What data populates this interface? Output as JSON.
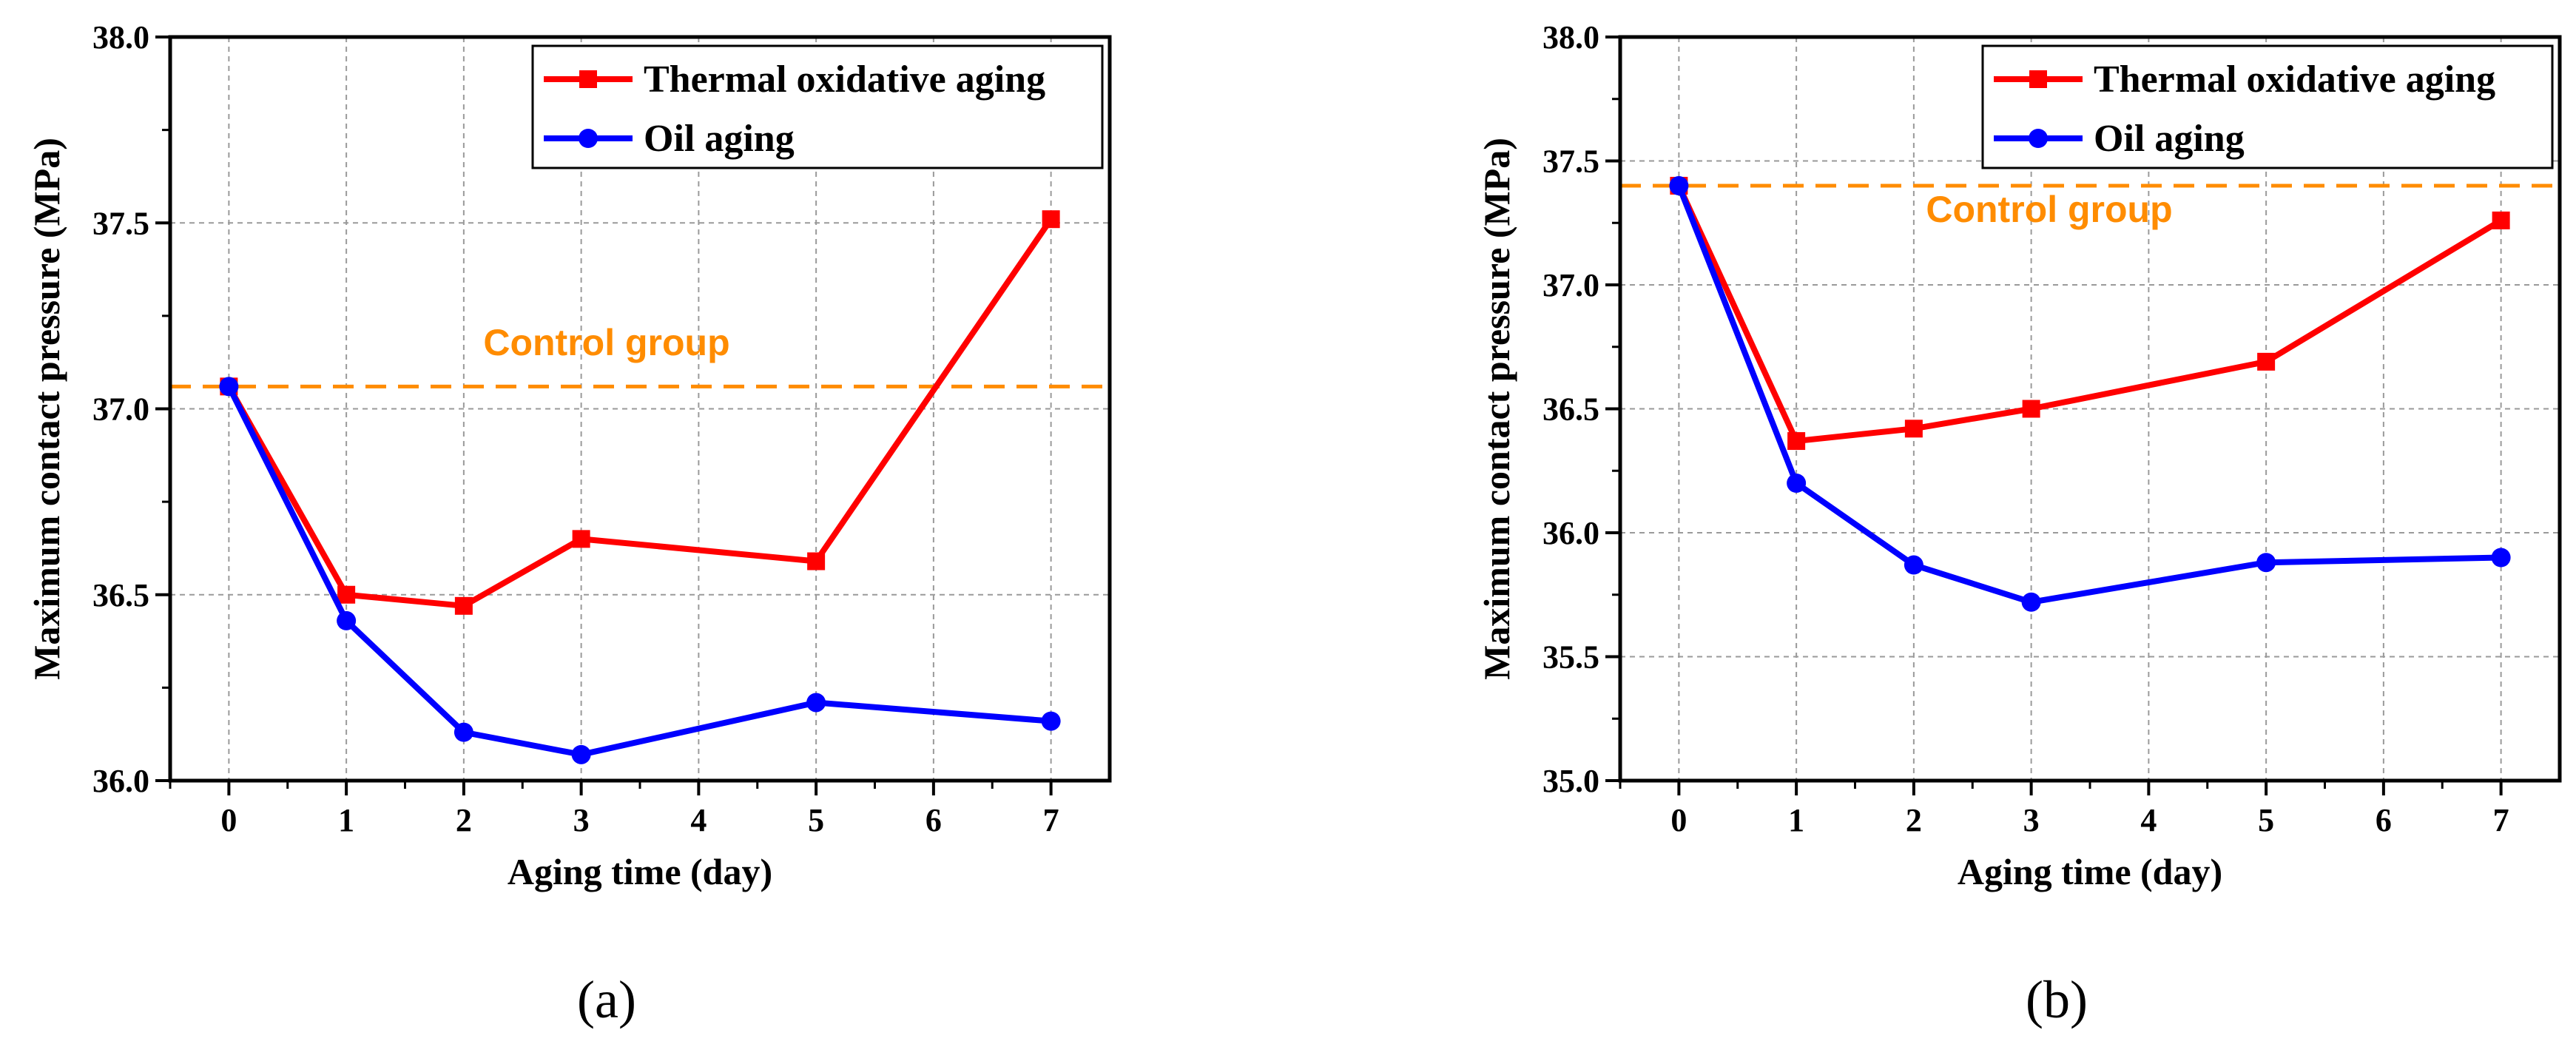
{
  "chart_data": [
    {
      "type": "line",
      "panel_label": "(a)",
      "x": [
        0,
        1,
        2,
        3,
        5,
        7
      ],
      "x_ticks": [
        0,
        1,
        2,
        3,
        4,
        5,
        6,
        7
      ],
      "xlim": [
        -0.5,
        7.5
      ],
      "ylim": [
        36.0,
        38.0
      ],
      "y_ticks": [
        "36.0",
        "36.5",
        "37.0",
        "37.5",
        "38.0"
      ],
      "xlabel": "Aging time (day)",
      "ylabel": "Maximum contact pressure (MPa)",
      "grid": true,
      "legend_position": "top-right",
      "series": [
        {
          "name": "Thermal oxidative aging",
          "color": "#ff0000",
          "marker": "square",
          "values": [
            37.06,
            36.5,
            36.47,
            36.65,
            36.59,
            37.51
          ]
        },
        {
          "name": "Oil aging",
          "color": "#0000ff",
          "marker": "circle",
          "values": [
            37.06,
            36.43,
            36.13,
            36.07,
            36.21,
            36.16
          ]
        }
      ],
      "reference": {
        "label": "Control group",
        "value": 37.06,
        "color": "#ff8c00",
        "style": "dashed"
      }
    },
    {
      "type": "line",
      "panel_label": "(b)",
      "x": [
        0,
        1,
        2,
        3,
        5,
        7
      ],
      "x_ticks": [
        0,
        1,
        2,
        3,
        4,
        5,
        6,
        7
      ],
      "xlim": [
        -0.5,
        7.5
      ],
      "ylim": [
        35.0,
        38.0
      ],
      "y_ticks": [
        "35.0",
        "35.5",
        "36.0",
        "36.5",
        "37.0",
        "37.5",
        "38.0"
      ],
      "xlabel": "Aging time (day)",
      "ylabel": "Maximum contact pressure (MPa)",
      "grid": true,
      "legend_position": "top-right",
      "series": [
        {
          "name": "Thermal oxidative aging",
          "color": "#ff0000",
          "marker": "square",
          "values": [
            37.4,
            36.37,
            36.42,
            36.5,
            36.69,
            37.26
          ]
        },
        {
          "name": "Oil aging",
          "color": "#0000ff",
          "marker": "circle",
          "values": [
            37.4,
            36.2,
            35.87,
            35.72,
            35.88,
            35.9
          ]
        }
      ],
      "reference": {
        "label": "Control group",
        "value": 37.4,
        "color": "#ff8c00",
        "style": "dashed"
      }
    }
  ]
}
